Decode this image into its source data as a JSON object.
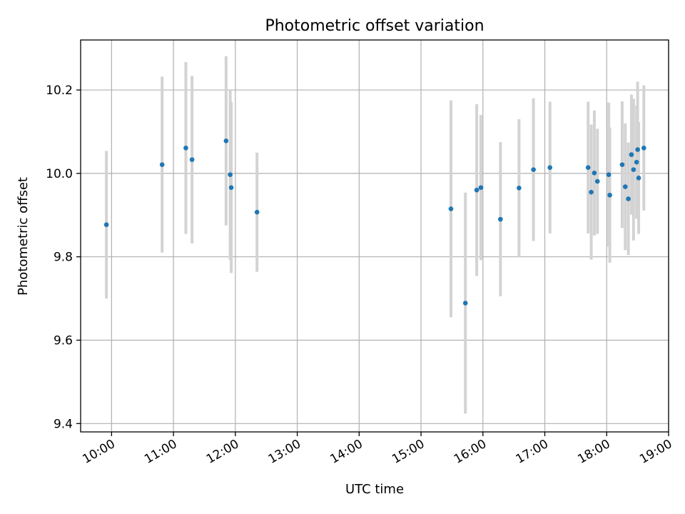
{
  "chart_data": {
    "type": "scatter",
    "title": "Photometric offset variation",
    "xlabel": "UTC time",
    "ylabel": "Photometric offset",
    "xlim": [
      "09:30",
      "19:00"
    ],
    "ylim": [
      9.38,
      10.32
    ],
    "grid": true,
    "x_ticks": [
      "10:00",
      "11:00",
      "12:00",
      "13:00",
      "14:00",
      "15:00",
      "16:00",
      "17:00",
      "18:00",
      "19:00"
    ],
    "y_ticks": [
      "9.4",
      "9.6",
      "9.8",
      "10.0",
      "10.2"
    ],
    "colors": {
      "points": "#1f77b4",
      "errorbars": "#d3d3d3",
      "grid": "#b0b0b0"
    },
    "points": [
      {
        "x": "09:55",
        "y": 9.877,
        "yerr": 0.177
      },
      {
        "x": "10:49",
        "y": 10.021,
        "yerr": 0.211
      },
      {
        "x": "11:12",
        "y": 10.061,
        "yerr": 0.206
      },
      {
        "x": "11:18",
        "y": 10.033,
        "yerr": 0.201
      },
      {
        "x": "11:51",
        "y": 10.078,
        "yerr": 0.203
      },
      {
        "x": "11:55",
        "y": 9.997,
        "yerr": 0.205
      },
      {
        "x": "11:56",
        "y": 9.966,
        "yerr": 0.205
      },
      {
        "x": "12:21",
        "y": 9.907,
        "yerr": 0.143
      },
      {
        "x": "15:29",
        "y": 9.915,
        "yerr": 0.26
      },
      {
        "x": "15:43",
        "y": 9.689,
        "yerr": 0.265
      },
      {
        "x": "15:54",
        "y": 9.96,
        "yerr": 0.206
      },
      {
        "x": "15:58",
        "y": 9.966,
        "yerr": 0.174
      },
      {
        "x": "16:17",
        "y": 9.89,
        "yerr": 0.185
      },
      {
        "x": "16:35",
        "y": 9.965,
        "yerr": 0.165
      },
      {
        "x": "16:49",
        "y": 10.009,
        "yerr": 0.171
      },
      {
        "x": "17:05",
        "y": 10.014,
        "yerr": 0.158
      },
      {
        "x": "17:42",
        "y": 10.014,
        "yerr": 0.158
      },
      {
        "x": "17:45",
        "y": 9.955,
        "yerr": 0.162
      },
      {
        "x": "17:48",
        "y": 10.001,
        "yerr": 0.15
      },
      {
        "x": "17:51",
        "y": 9.981,
        "yerr": 0.126
      },
      {
        "x": "18:02",
        "y": 9.997,
        "yerr": 0.173
      },
      {
        "x": "18:03",
        "y": 9.948,
        "yerr": 0.162
      },
      {
        "x": "18:15",
        "y": 10.021,
        "yerr": 0.152
      },
      {
        "x": "18:18",
        "y": 9.968,
        "yerr": 0.152
      },
      {
        "x": "18:21",
        "y": 9.939,
        "yerr": 0.135
      },
      {
        "x": "18:24",
        "y": 10.045,
        "yerr": 0.144
      },
      {
        "x": "18:26",
        "y": 10.009,
        "yerr": 0.17
      },
      {
        "x": "18:29",
        "y": 10.027,
        "yerr": 0.136
      },
      {
        "x": "18:30",
        "y": 10.057,
        "yerr": 0.163
      },
      {
        "x": "18:31",
        "y": 9.989,
        "yerr": 0.134
      },
      {
        "x": "18:36",
        "y": 10.061,
        "yerr": 0.15
      }
    ]
  }
}
